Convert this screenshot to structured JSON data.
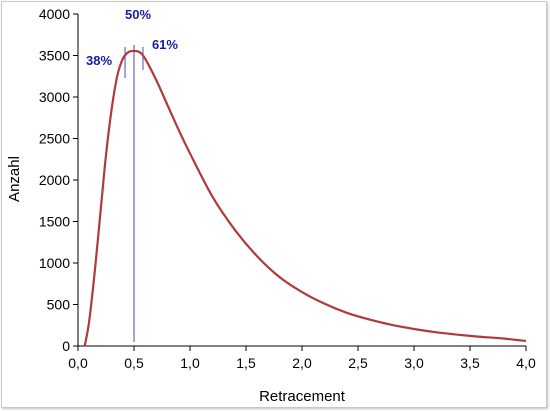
{
  "chart_data": {
    "type": "line",
    "xlabel": "Retracement",
    "ylabel": "Anzahl",
    "xlim": [
      0,
      4
    ],
    "ylim": [
      0,
      4000
    ],
    "x_ticks": [
      "0,0",
      "0,5",
      "1,0",
      "1,5",
      "2,0",
      "2,5",
      "3,0",
      "3,5",
      "4,0"
    ],
    "y_ticks": [
      "0",
      "500",
      "1000",
      "1500",
      "2000",
      "2500",
      "3000",
      "3500",
      "4000"
    ],
    "grid": false,
    "series": [
      {
        "color": "#b03a3a",
        "x": [
          0.06,
          0.1,
          0.15,
          0.2,
          0.25,
          0.3,
          0.35,
          0.4,
          0.45,
          0.5,
          0.55,
          0.6,
          0.7,
          0.8,
          0.9,
          1.0,
          1.2,
          1.4,
          1.6,
          1.8,
          2.0,
          2.2,
          2.4,
          2.6,
          2.8,
          3.0,
          3.2,
          3.4,
          3.6,
          3.8,
          4.0
        ],
        "y": [
          0,
          300,
          900,
          1600,
          2300,
          2850,
          3250,
          3460,
          3540,
          3555,
          3540,
          3460,
          3200,
          2900,
          2600,
          2320,
          1800,
          1400,
          1080,
          830,
          650,
          510,
          400,
          320,
          255,
          205,
          165,
          135,
          110,
          90,
          60
        ]
      }
    ],
    "markers": [
      {
        "label": "38%",
        "x": 0.42,
        "color": "#1a1aa8"
      },
      {
        "label": "50%",
        "x": 0.5,
        "color": "#1a1aa8"
      },
      {
        "label": "61%",
        "x": 0.58,
        "color": "#1a1aa8"
      }
    ]
  }
}
